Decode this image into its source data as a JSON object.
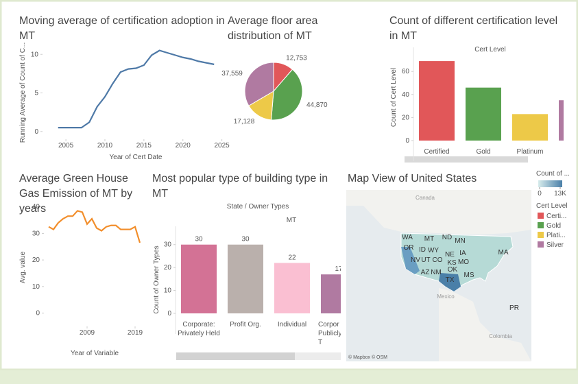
{
  "chart_data": [
    {
      "type": "line",
      "title": "Moving average of certification adoption in MT",
      "x_label": "Year of Cert Date",
      "y_label": "Running Average of Count of C...",
      "color": "#4e79a7",
      "x": [
        2004,
        2005,
        2006,
        2007,
        2008,
        2009,
        2010,
        2011,
        2012,
        2013,
        2014,
        2015,
        2016,
        2017,
        2018,
        2019,
        2020,
        2021,
        2022,
        2023,
        2024
      ],
      "values": [
        0.5,
        0.5,
        0.5,
        0.5,
        1.2,
        3.2,
        4.5,
        6.2,
        7.7,
        8.1,
        8.2,
        8.6,
        9.9,
        10.5,
        10.2,
        9.9,
        9.6,
        9.4,
        9.1,
        8.9,
        8.7
      ],
      "xlim": [
        2002,
        2026
      ],
      "xticks": [
        2005,
        2010,
        2015,
        2020,
        2025
      ],
      "ylim": [
        -1,
        11
      ],
      "yticks": [
        0,
        5,
        10
      ]
    },
    {
      "type": "pie",
      "title": "Average floor area distribution of MT",
      "values": [
        12753,
        44870,
        17128,
        37559
      ],
      "value_labels": [
        "12,753",
        "44,870",
        "17,128",
        "37,559"
      ],
      "colors": [
        "#e15759",
        "#59a14f",
        "#edc948",
        "#b07aa1"
      ]
    },
    {
      "type": "bar",
      "title": "Count of different certification level in MT",
      "header": "Cert Level",
      "y_label": "Count of Cert Level",
      "categories": [
        "Certified",
        "Gold",
        "Platinum",
        null
      ],
      "values": [
        69,
        46,
        23,
        35
      ],
      "colors": [
        "#e15759",
        "#59a14f",
        "#edc948",
        "#b07aa1"
      ],
      "ylim": [
        0,
        75
      ],
      "yticks": [
        0,
        20,
        40,
        60
      ]
    },
    {
      "type": "line",
      "title": "Average Green House Gas Emission of MT by years",
      "x_label": "Year of Variable",
      "y_label": "Avg. value",
      "color": "#f28e2b",
      "x": [
        2001,
        2002,
        2003,
        2004,
        2005,
        2006,
        2007,
        2008,
        2009,
        2010,
        2011,
        2012,
        2013,
        2014,
        2015,
        2016,
        2017,
        2018,
        2019,
        2020
      ],
      "values": [
        32.5,
        31.5,
        34,
        35.5,
        36.5,
        36.5,
        38.5,
        38,
        33.5,
        35.5,
        32,
        31,
        32.5,
        33,
        33,
        31.5,
        31.5,
        31.5,
        32.5,
        26.5
      ],
      "xlim": [
        2000,
        2021
      ],
      "xticks": [
        2009,
        2019
      ],
      "ylim": [
        -5,
        43
      ],
      "yticks": [
        0,
        10,
        20,
        30,
        40
      ]
    },
    {
      "type": "bar",
      "title": "Most popular type of building type in MT",
      "header": "State / Owner Types",
      "subheader": "MT",
      "y_label": "Count of Owner Types",
      "categories": [
        "Corporate: Privately Held",
        "Profit Org.",
        "Individual",
        "Corpor Publicly T"
      ],
      "values": [
        30,
        30,
        22,
        17
      ],
      "colors": [
        "#d37295",
        "#bab0ac",
        "#fabfd2",
        "#b07aa1"
      ],
      "ylim": [
        0,
        35
      ],
      "yticks": [
        0,
        10,
        20,
        30
      ],
      "show_values": true
    },
    {
      "type": "map",
      "title": "Map View of United States",
      "labels": [
        "Canada",
        "WA",
        "OR",
        "ID",
        "MT",
        "ND",
        "MN",
        "WY",
        "NV",
        "UT",
        "CO",
        "NE",
        "IA",
        "KS",
        "MO",
        "AZ",
        "NM",
        "OK",
        "TX",
        "MS",
        "MA",
        "PR",
        "Mexico",
        "Colombia"
      ],
      "attribution": "© Mapbox © OSM",
      "legend_title": "Count of ...",
      "legend_ticks": [
        0,
        {
          "value": 13000,
          "label": "13K"
        }
      ],
      "color_legend_title": "Cert Level",
      "series": [
        {
          "name": "Certi...",
          "color": "#e15759"
        },
        {
          "name": "Gold",
          "color": "#59a14f"
        },
        {
          "name": "Plati...",
          "color": "#edc948"
        },
        {
          "name": "Silver",
          "color": "#b07aa1"
        }
      ]
    }
  ]
}
